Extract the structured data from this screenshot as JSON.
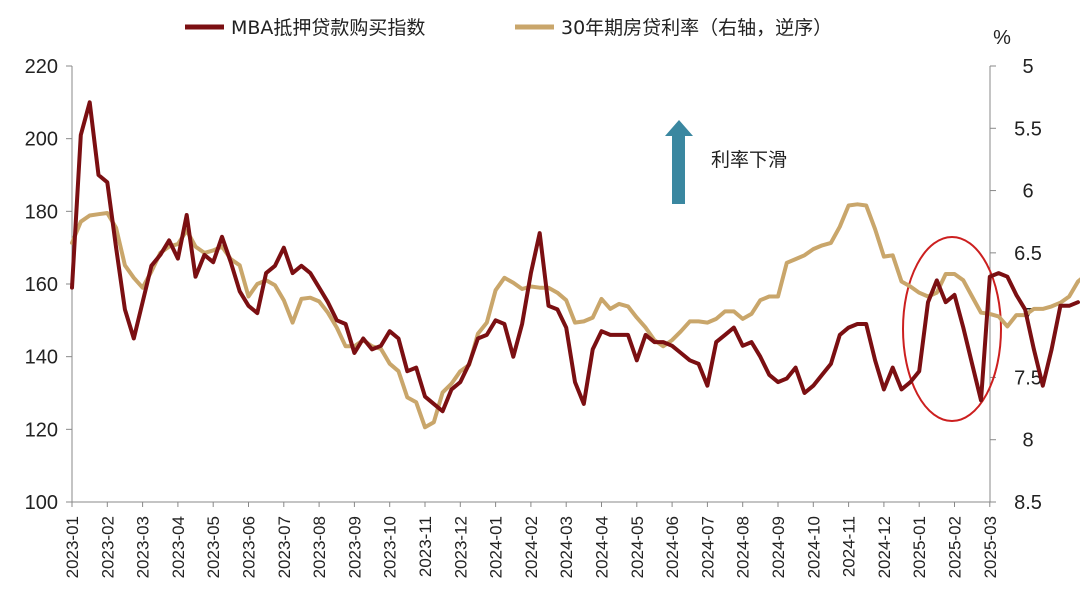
{
  "chart_data": {
    "type": "line",
    "title": "",
    "left_axis": {
      "ylim": [
        100,
        220
      ],
      "ticks": [
        "100",
        "120",
        "140",
        "160",
        "180",
        "200",
        "220"
      ]
    },
    "right_axis": {
      "unit": "%",
      "ylim": [
        5,
        8.5
      ],
      "inverted": true,
      "ticks": [
        "5",
        "5.5",
        "6",
        "6.5",
        "7",
        "7.5",
        "8",
        "8.5"
      ]
    },
    "x_tick_labels": [
      "2023-01",
      "2023-02",
      "2023-03",
      "2023-04",
      "2023-05",
      "2023-06",
      "2023-07",
      "2023-08",
      "2023-09",
      "2023-10",
      "2023-11",
      "2023-12",
      "2024-01",
      "2024-02",
      "2024-03",
      "2024-04",
      "2024-05",
      "2024-06",
      "2024-07",
      "2024-08",
      "2024-09",
      "2024-10",
      "2024-11",
      "2024-12",
      "2025-01",
      "2025-02",
      "2025-03"
    ],
    "legend_position": "top",
    "grid": false,
    "annotation": {
      "text": "利率下滑",
      "arrow_color": "#3a87a0"
    },
    "highlight_circle_color": "#cc1f1f",
    "series": [
      {
        "name": "MBA抵押贷款购买指数",
        "axis": "left",
        "color": "#7b0f12",
        "values": [
          159,
          201,
          210,
          190,
          188,
          170,
          153,
          145,
          155,
          165,
          168,
          172,
          167,
          179,
          162,
          168,
          166,
          173,
          166,
          158,
          154,
          152,
          163,
          165,
          170,
          163,
          165,
          163,
          159,
          155,
          150,
          149,
          141,
          145,
          142,
          143,
          147,
          145,
          136,
          137,
          129,
          127,
          125,
          131,
          133,
          138,
          145,
          146,
          150,
          149,
          140,
          149,
          163,
          174,
          154,
          153,
          148,
          133,
          127,
          142,
          147,
          146,
          146,
          146,
          139,
          146,
          144,
          144,
          143,
          141,
          139,
          138,
          132,
          144,
          146,
          148,
          143,
          144,
          140,
          135,
          133,
          134,
          137,
          130,
          132,
          135,
          138,
          146,
          148,
          149,
          149,
          139,
          131,
          137,
          131,
          133,
          136,
          155,
          161,
          155,
          157,
          148,
          138,
          128,
          162,
          163,
          162,
          157,
          153,
          142,
          132,
          142,
          154,
          154,
          155
        ],
        "point_step_months": 0.25
      },
      {
        "name": "30年期房贷利率（右轴，逆序）",
        "axis": "right",
        "color": "#c9a66b",
        "values": [
          6.42,
          6.25,
          6.2,
          6.19,
          6.18,
          6.3,
          6.6,
          6.7,
          6.78,
          6.65,
          6.5,
          6.45,
          6.43,
          6.32,
          6.45,
          6.5,
          6.48,
          6.45,
          6.55,
          6.6,
          6.85,
          6.75,
          6.72,
          6.76,
          6.88,
          7.06,
          6.87,
          6.86,
          6.89,
          6.98,
          7.1,
          7.25,
          7.25,
          7.2,
          7.25,
          7.27,
          7.39,
          7.45,
          7.66,
          7.7,
          7.9,
          7.86,
          7.62,
          7.55,
          7.45,
          7.4,
          7.15,
          7.06,
          6.8,
          6.7,
          6.74,
          6.79,
          6.77,
          6.78,
          6.78,
          6.82,
          6.88,
          7.06,
          7.05,
          7.02,
          6.87,
          6.95,
          6.91,
          6.93,
          7.02,
          7.1,
          7.2,
          7.25,
          7.2,
          7.13,
          7.05,
          7.05,
          7.06,
          7.03,
          6.97,
          6.97,
          7.03,
          6.99,
          6.88,
          6.85,
          6.85,
          6.58,
          6.55,
          6.52,
          6.47,
          6.44,
          6.42,
          6.29,
          6.12,
          6.11,
          6.12,
          6.31,
          6.53,
          6.52,
          6.73,
          6.77,
          6.82,
          6.85,
          6.82,
          6.67,
          6.67,
          6.72,
          6.85,
          6.98,
          6.99,
          7.01,
          7.09,
          7.0,
          7.0,
          6.95,
          6.95,
          6.93,
          6.9,
          6.85,
          6.73,
          6.67,
          6.71,
          6.71
        ]
      }
    ]
  }
}
